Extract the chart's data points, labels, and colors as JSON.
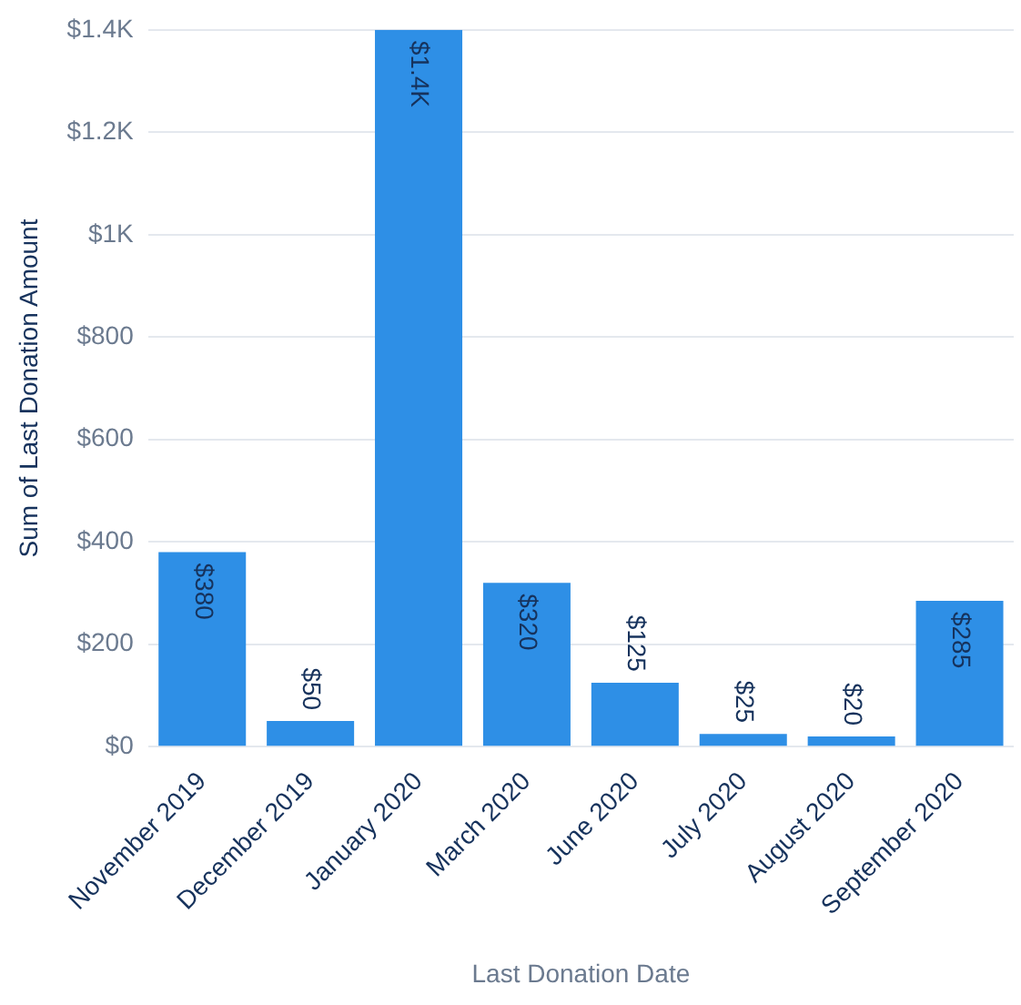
{
  "chart_data": {
    "type": "bar",
    "xlabel": "Last Donation Date",
    "ylabel": "Sum of Last Donation Amount",
    "categories": [
      "November 2019",
      "December 2019",
      "January 2020",
      "March 2020",
      "June 2020",
      "July 2020",
      "August 2020",
      "September 2020"
    ],
    "values": [
      380,
      50,
      1400,
      320,
      125,
      25,
      20,
      285
    ],
    "value_labels": [
      "$380",
      "$50",
      "$1.4K",
      "$320",
      "$125",
      "$25",
      "$20",
      "$285"
    ],
    "color": "#2e8fe6",
    "ylim": [
      0,
      1400
    ],
    "yticks": [
      {
        "value": 0,
        "label": "$0"
      },
      {
        "value": 200,
        "label": "$200"
      },
      {
        "value": 400,
        "label": "$400"
      },
      {
        "value": 600,
        "label": "$600"
      },
      {
        "value": 800,
        "label": "$800"
      },
      {
        "value": 1000,
        "label": "$1K"
      },
      {
        "value": 1200,
        "label": "$1.2K"
      },
      {
        "value": 1400,
        "label": "$1.4K"
      }
    ],
    "grid": "y",
    "legend": false
  }
}
